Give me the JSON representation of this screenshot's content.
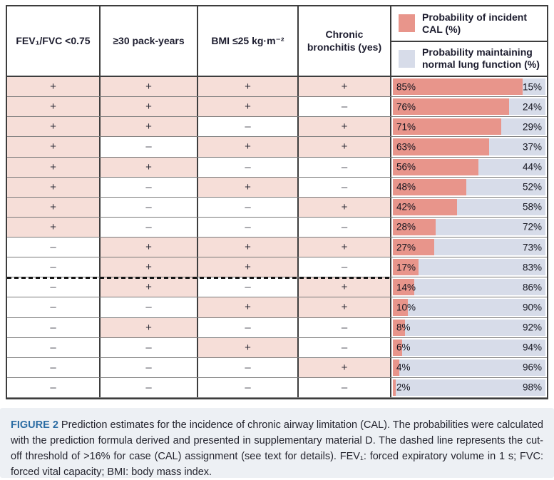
{
  "colors": {
    "incident_bar": "#e8958b",
    "normal_bar": "#d7dce9",
    "positive_cell": "#f6ded8",
    "border": "#3d3d3d",
    "caption_bg": "#edf0f4",
    "figure_label": "#2b6ca3"
  },
  "table": {
    "headers": [
      "FEV₁/FVC <0.75",
      "≥30 pack-years",
      "BMI ≤25 kg·m⁻²",
      "Chronic bronchitis (yes)"
    ],
    "legend": [
      {
        "label": "Probability of incident CAL (%)",
        "swatch": "#e8958b"
      },
      {
        "label": "Probability maintaining normal lung function (%)",
        "swatch": "#d7dce9"
      }
    ],
    "rows": [
      {
        "signs": [
          "+",
          "+",
          "+",
          "+"
        ],
        "cal": 85,
        "normal": 15
      },
      {
        "signs": [
          "+",
          "+",
          "+",
          "−"
        ],
        "cal": 76,
        "normal": 24
      },
      {
        "signs": [
          "+",
          "+",
          "−",
          "+"
        ],
        "cal": 71,
        "normal": 29
      },
      {
        "signs": [
          "+",
          "−",
          "+",
          "+"
        ],
        "cal": 63,
        "normal": 37
      },
      {
        "signs": [
          "+",
          "+",
          "−",
          "−"
        ],
        "cal": 56,
        "normal": 44
      },
      {
        "signs": [
          "+",
          "−",
          "+",
          "−"
        ],
        "cal": 48,
        "normal": 52
      },
      {
        "signs": [
          "+",
          "−",
          "−",
          "+"
        ],
        "cal": 42,
        "normal": 58
      },
      {
        "signs": [
          "+",
          "−",
          "−",
          "−"
        ],
        "cal": 28,
        "normal": 72
      },
      {
        "signs": [
          "−",
          "+",
          "+",
          "+"
        ],
        "cal": 27,
        "normal": 73
      },
      {
        "signs": [
          "−",
          "+",
          "+",
          "−"
        ],
        "cal": 17,
        "normal": 83
      },
      {
        "signs": [
          "−",
          "+",
          "−",
          "+"
        ],
        "cal": 14,
        "normal": 86
      },
      {
        "signs": [
          "−",
          "−",
          "+",
          "+"
        ],
        "cal": 10,
        "normal": 90
      },
      {
        "signs": [
          "−",
          "+",
          "−",
          "−"
        ],
        "cal": 8,
        "normal": 92
      },
      {
        "signs": [
          "−",
          "−",
          "+",
          "−"
        ],
        "cal": 6,
        "normal": 94
      },
      {
        "signs": [
          "−",
          "−",
          "−",
          "+"
        ],
        "cal": 4,
        "normal": 96
      },
      {
        "signs": [
          "−",
          "−",
          "−",
          "−"
        ],
        "cal": 2,
        "normal": 98
      }
    ],
    "dashed_line_after_row": 10
  },
  "caption": {
    "label": "FIGURE 2",
    "text": " Prediction estimates for the incidence of chronic airway limitation (CAL). The probabilities were calculated with the prediction formula derived and presented in supplementary material D. The dashed line represents the cut-off threshold of >16% for case (CAL) assignment (see text for details). FEV₁: forced expiratory volume in 1 s; FVC: forced vital capacity; BMI: body mass index."
  },
  "chart_data": {
    "type": "bar",
    "subtype": "horizontal-stacked",
    "title": "Prediction estimates for the incidence of chronic airway limitation (CAL)",
    "predictor_columns": [
      "FEV₁/FVC <0.75",
      "≥30 pack-years",
      "BMI ≤25 kg·m⁻²",
      "Chronic bronchitis (yes)"
    ],
    "categories": [
      "+ + + +",
      "+ + + −",
      "+ + − +",
      "+ − + +",
      "+ + − −",
      "+ − + −",
      "+ − − +",
      "+ − − −",
      "− + + +",
      "− + + −",
      "− + − +",
      "− − + +",
      "− + − −",
      "− − + −",
      "− − − +",
      "− − − −"
    ],
    "series": [
      {
        "name": "Probability of incident CAL (%)",
        "color": "#e8958b",
        "values": [
          85,
          76,
          71,
          63,
          56,
          48,
          42,
          28,
          27,
          17,
          14,
          10,
          8,
          6,
          4,
          2
        ]
      },
      {
        "name": "Probability maintaining normal lung function (%)",
        "color": "#d7dce9",
        "values": [
          15,
          24,
          29,
          37,
          44,
          52,
          58,
          72,
          73,
          83,
          86,
          90,
          92,
          94,
          96,
          98
        ]
      }
    ],
    "xlim": [
      0,
      100
    ],
    "annotations": [
      "Dashed line = cut-off threshold of >16% for case (CAL) assignment"
    ],
    "legend_position": "top-right",
    "grid": false
  }
}
